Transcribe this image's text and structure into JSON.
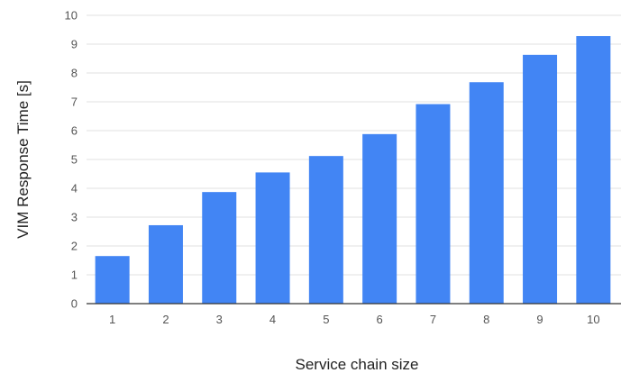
{
  "chart_data": {
    "type": "bar",
    "title": "",
    "xlabel": "Service chain size",
    "ylabel": "VIM Response Time [s]",
    "categories": [
      "1",
      "2",
      "3",
      "4",
      "5",
      "6",
      "7",
      "8",
      "9",
      "10"
    ],
    "values": [
      1.65,
      2.72,
      3.87,
      4.55,
      5.12,
      5.88,
      6.92,
      7.68,
      8.63,
      9.28
    ],
    "ylim": [
      0,
      10
    ],
    "yticks": [
      "0",
      "1",
      "2",
      "3",
      "4",
      "5",
      "6",
      "7",
      "8",
      "9",
      "10"
    ],
    "grid": true,
    "legend": "none",
    "bar_color": "#4285F4",
    "grid_color": "#E0E0E0",
    "axis_color": "#333333"
  }
}
